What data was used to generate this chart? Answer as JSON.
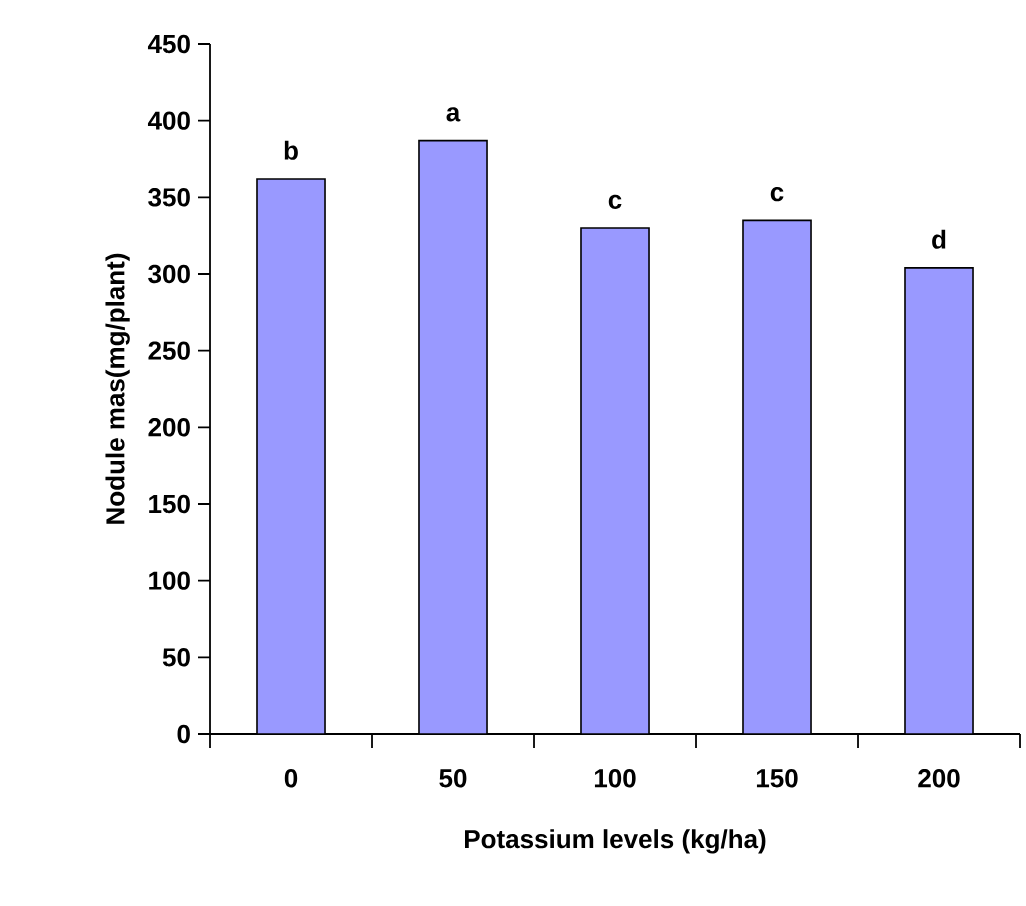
{
  "chart_data": {
    "type": "bar",
    "xlabel": "Potassium levels (kg/ha)",
    "ylabel": "Nodule mas(mg/plant)",
    "categories": [
      "0",
      "50",
      "100",
      "150",
      "200"
    ],
    "values": [
      362,
      387,
      330,
      335,
      304
    ],
    "color": "#9999ff",
    "ylim": [
      0,
      450
    ],
    "yticks": [
      0,
      50,
      100,
      150,
      200,
      250,
      300,
      350,
      400,
      450
    ],
    "annotations": [
      {
        "text": "b",
        "x": "0",
        "y": 362
      },
      {
        "text": "a",
        "x": "50",
        "y": 387
      },
      {
        "text": "c",
        "x": "100",
        "y": 330
      },
      {
        "text": "c",
        "x": "150",
        "y": 335
      },
      {
        "text": "d",
        "x": "200",
        "y": 304
      }
    ],
    "grid": false
  }
}
